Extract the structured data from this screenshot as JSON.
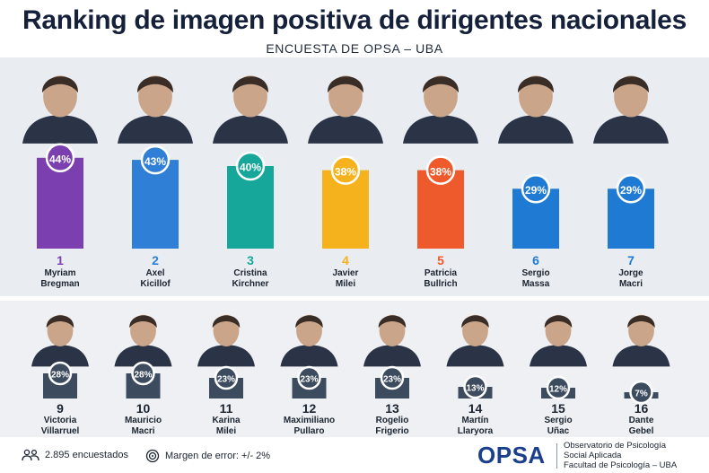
{
  "header": {
    "title": "Ranking de imagen positiva de dirigentes nacionales",
    "subtitle": "ENCUESTA DE OPSA – UBA"
  },
  "chart_data": [
    {
      "type": "bar",
      "categories": [
        "Myriam Bregman",
        "Axel Kicillof",
        "Cristina Kirchner",
        "Javier Milei",
        "Patricia Bullrich",
        "Sergio Massa",
        "Jorge Macri"
      ],
      "ranks": [
        "1",
        "2",
        "3",
        "4",
        "5",
        "6",
        "7"
      ],
      "name_lines": [
        [
          "Myriam",
          "Bregman"
        ],
        [
          "Axel",
          "Kicillof"
        ],
        [
          "Cristina",
          "Kirchner"
        ],
        [
          "Javier",
          "Milei"
        ],
        [
          "Patricia",
          "Bullrich"
        ],
        [
          "Sergio",
          "Massa"
        ],
        [
          "Jorge",
          "Macri"
        ]
      ],
      "values": [
        44,
        43,
        40,
        38,
        38,
        29,
        29
      ],
      "value_labels": [
        "44%",
        "43%",
        "40%",
        "38%",
        "38%",
        "29%",
        "29%"
      ],
      "colors": [
        "#7b3fb0",
        "#2f7fd6",
        "#17a79a",
        "#f6b21d",
        "#ee5a2b",
        "#1f7ad3",
        "#1f7ad3"
      ],
      "rank_colors": [
        "#7b3fb0",
        "#2f7fd6",
        "#17a79a",
        "#f6b21d",
        "#ee5a2b",
        "#1f7ad3",
        "#1f7ad3"
      ]
    },
    {
      "type": "bar",
      "categories": [
        "Victoria Villarruel",
        "Mauricio Macri",
        "Karina Milei",
        "Maximiliano Pullaro",
        "Rogelio Frigerio",
        "Martín Llaryora",
        "Sergio Uñac",
        "Dante Gebel"
      ],
      "ranks": [
        "9",
        "10",
        "11",
        "12",
        "13",
        "14",
        "15",
        "16"
      ],
      "name_lines": [
        [
          "Victoria",
          "Villarruel"
        ],
        [
          "Mauricio",
          "Macri"
        ],
        [
          "Karina",
          "Milei"
        ],
        [
          "Maximiliano",
          "Pullaro"
        ],
        [
          "Rogelio",
          "Frigerio"
        ],
        [
          "Martín",
          "Llaryora"
        ],
        [
          "Sergio",
          "Uñac"
        ],
        [
          "Dante",
          "Gebel"
        ]
      ],
      "values": [
        28,
        28,
        23,
        23,
        23,
        13,
        12,
        7
      ],
      "value_labels": [
        "28%",
        "28%",
        "23%",
        "23%",
        "23%",
        "13%",
        "12%",
        "7%"
      ],
      "colors": [
        "#3d4b5e",
        "#3d4b5e",
        "#3d4b5e",
        "#3d4b5e",
        "#3d4b5e",
        "#3d4b5e",
        "#3d4b5e",
        "#3d4b5e"
      ],
      "rank_colors": [
        "#1b2430",
        "#1b2430",
        "#1b2430",
        "#1b2430",
        "#1b2430",
        "#1b2430",
        "#1b2430",
        "#1b2430"
      ]
    }
  ],
  "footer": {
    "respondents": "2.895 encuestados",
    "margin": "Margen de error: +/- 2%",
    "logo": "OPSA",
    "org_line1": "Observatorio de Psicología",
    "org_line2": "Social Aplicada",
    "org_line3": "Facultad de Psicología – UBA"
  },
  "icons": {
    "respondents": "people-icon",
    "margin": "target-icon"
  }
}
